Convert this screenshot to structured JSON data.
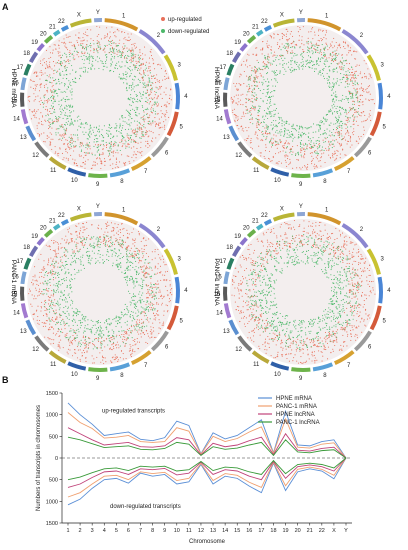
{
  "panels": {
    "a": "A",
    "b": "B"
  },
  "circos_legend": {
    "up": "up-regulated",
    "down": "down-regulated",
    "up_color": "#e8705a",
    "down_color": "#4db86a"
  },
  "circos": [
    {
      "label": "HPNE mRNA"
    },
    {
      "label": "HPNE lncRNA"
    },
    {
      "label": "PANC-1 mRNA"
    },
    {
      "label": "PANC-1 lncRNA"
    }
  ],
  "chromosomes": [
    "1",
    "2",
    "3",
    "4",
    "5",
    "6",
    "7",
    "8",
    "9",
    "10",
    "11",
    "12",
    "13",
    "14",
    "15",
    "16",
    "17",
    "18",
    "19",
    "20",
    "21",
    "22",
    "X",
    "Y"
  ],
  "chromosome_colors": [
    "#d1942c",
    "#8b86d0",
    "#c9c231",
    "#4a86d6",
    "#d45a3a",
    "#9a9a9a",
    "#d6a130",
    "#58a0d8",
    "#6db34a",
    "#2f5fa8",
    "#b8a83a",
    "#7a7a7a",
    "#5b8fd0",
    "#a27ad0",
    "#5a5a5a",
    "#7da5d6",
    "#2a7f62",
    "#6f6fb0",
    "#8c74cc",
    "#6ab04c",
    "#4db3c4",
    "#4a8fd6",
    "#b9b536",
    "#8ea6d4"
  ],
  "chart_data": {
    "type": "line",
    "categories": [
      "1",
      "2",
      "3",
      "4",
      "5",
      "6",
      "7",
      "8",
      "9",
      "10",
      "11",
      "12",
      "13",
      "14",
      "15",
      "16",
      "17",
      "18",
      "19",
      "20",
      "21",
      "22",
      "X",
      "Y"
    ],
    "ylabel": "Numbers of transcripts in chromosomes",
    "xlabel": "Chromosome",
    "ylim": [
      -1500,
      1500
    ],
    "yticks": [
      1500,
      1000,
      500,
      0,
      -500,
      -1000,
      -1500
    ],
    "ytick_labels": [
      "1500",
      "1000",
      "500",
      "0",
      "500",
      "1000",
      "1500"
    ],
    "legend_position": "top-right",
    "annotations": {
      "up": "up-regulated transcripts",
      "down": "down-regulated transcripts"
    },
    "series": [
      {
        "name": "HPNE mRNA",
        "color": "#5b8fd6",
        "up": [
          1270,
          1000,
          780,
          520,
          560,
          600,
          430,
          400,
          470,
          850,
          750,
          100,
          580,
          440,
          520,
          700,
          880,
          120,
          1080,
          300,
          280,
          380,
          420,
          0
        ],
        "down": [
          -1080,
          -950,
          -700,
          -500,
          -470,
          -580,
          -350,
          -420,
          -380,
          -600,
          -550,
          -150,
          -600,
          -420,
          -470,
          -650,
          -800,
          -120,
          -750,
          -320,
          -250,
          -300,
          -480,
          0
        ]
      },
      {
        "name": "PANC-1 mRNA",
        "color": "#f0a070",
        "up": [
          1050,
          820,
          680,
          460,
          480,
          520,
          380,
          360,
          380,
          700,
          620,
          90,
          500,
          380,
          450,
          600,
          720,
          110,
          900,
          250,
          230,
          320,
          350,
          0
        ],
        "down": [
          -900,
          -800,
          -600,
          -420,
          -400,
          -500,
          -320,
          -360,
          -330,
          -520,
          -470,
          -130,
          -520,
          -360,
          -400,
          -560,
          -680,
          -100,
          -640,
          -260,
          -210,
          -260,
          -400,
          0
        ]
      },
      {
        "name": "HPNE lncRNA",
        "color": "#c0447a",
        "up": [
          700,
          560,
          420,
          300,
          330,
          360,
          260,
          250,
          280,
          470,
          420,
          70,
          340,
          260,
          300,
          400,
          480,
          80,
          560,
          180,
          160,
          220,
          250,
          0
        ],
        "down": [
          -680,
          -600,
          -450,
          -320,
          -300,
          -380,
          -250,
          -270,
          -240,
          -390,
          -350,
          -100,
          -380,
          -270,
          -300,
          -420,
          -500,
          -80,
          -470,
          -200,
          -160,
          -200,
          -300,
          0
        ]
      },
      {
        "name": "PANC-1 lncRNA",
        "color": "#3a9a3a",
        "up": [
          480,
          420,
          330,
          240,
          260,
          280,
          200,
          190,
          220,
          360,
          320,
          60,
          260,
          200,
          230,
          300,
          360,
          60,
          420,
          140,
          120,
          170,
          190,
          0
        ],
        "down": [
          -500,
          -440,
          -340,
          -250,
          -230,
          -290,
          -190,
          -210,
          -190,
          -300,
          -270,
          -80,
          -290,
          -210,
          -230,
          -320,
          -380,
          -60,
          -360,
          -150,
          -120,
          -150,
          -230,
          0
        ]
      }
    ]
  }
}
